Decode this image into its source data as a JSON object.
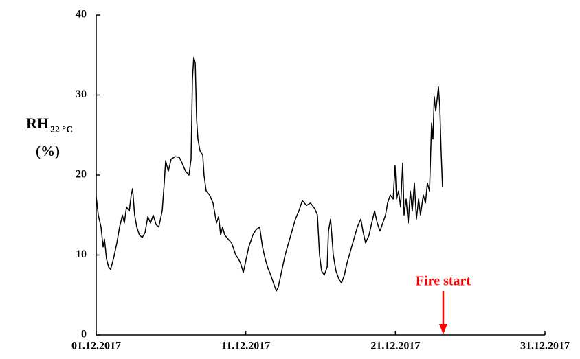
{
  "chart_data": {
    "type": "line",
    "ylabel": "RH",
    "ylabel_subscript": "22 °C",
    "ylabel_unit": "(%)",
    "annotation": {
      "text": "Fire start",
      "x": 23.2,
      "color": "#ff0000"
    },
    "color": "#000000",
    "xlim": [
      0,
      30
    ],
    "xticks": [
      {
        "value": 0,
        "label": "01.12.2017"
      },
      {
        "value": 10,
        "label": "11.12.2017"
      },
      {
        "value": 20,
        "label": "21.12.2017"
      },
      {
        "value": 30,
        "label": "31.12.2017"
      }
    ],
    "ylim": [
      0,
      40
    ],
    "yticks": [
      0,
      10,
      20,
      30,
      40
    ],
    "x": [
      0,
      0.14,
      0.32,
      0.46,
      0.55,
      0.69,
      0.83,
      0.96,
      1.15,
      1.38,
      1.56,
      1.75,
      1.88,
      2.02,
      2.21,
      2.34,
      2.43,
      2.57,
      2.71,
      2.89,
      3.08,
      3.26,
      3.45,
      3.63,
      3.81,
      4.0,
      4.18,
      4.41,
      4.55,
      4.64,
      4.82,
      5.01,
      5.28,
      5.56,
      5.74,
      5.97,
      6.2,
      6.34,
      6.43,
      6.52,
      6.62,
      6.71,
      6.8,
      6.94,
      7.12,
      7.21,
      7.35,
      7.58,
      7.81,
      8.04,
      8.18,
      8.32,
      8.45,
      8.59,
      8.82,
      9.05,
      9.33,
      9.51,
      9.65,
      9.83,
      9.97,
      10.2,
      10.47,
      10.7,
      10.93,
      11.12,
      11.3,
      11.49,
      11.67,
      11.85,
      12.04,
      12.17,
      12.4,
      12.63,
      12.86,
      13.09,
      13.32,
      13.55,
      13.78,
      14.06,
      14.33,
      14.61,
      14.79,
      14.93,
      15.07,
      15.25,
      15.44,
      15.53,
      15.67,
      15.85,
      16.03,
      16.22,
      16.4,
      16.59,
      16.77,
      17.0,
      17.23,
      17.46,
      17.69,
      17.83,
      18.01,
      18.24,
      18.42,
      18.61,
      18.79,
      18.97,
      19.16,
      19.34,
      19.48,
      19.66,
      19.85,
      19.98,
      20.08,
      20.21,
      20.35,
      20.49,
      20.58,
      20.72,
      20.86,
      21.0,
      21.13,
      21.27,
      21.41,
      21.55,
      21.68,
      21.87,
      22.01,
      22.14,
      22.28,
      22.42,
      22.51,
      22.6,
      22.7,
      22.79,
      22.88,
      22.97,
      23.06,
      23.15
    ],
    "values": [
      17.3,
      15,
      13.5,
      11,
      12,
      9.5,
      8.5,
      8.2,
      9.5,
      11.5,
      13.5,
      15,
      14,
      16,
      15.5,
      17.5,
      18.3,
      15,
      13.5,
      12.5,
      12.2,
      12.8,
      14.8,
      14,
      15,
      13.8,
      13.5,
      15.5,
      19,
      21.8,
      20.5,
      22,
      22.3,
      22.2,
      21.5,
      20.5,
      20,
      22,
      32,
      34.7,
      34,
      27,
      24.5,
      23,
      22.5,
      20,
      18,
      17.5,
      16.5,
      14,
      14.8,
      12.5,
      13.5,
      12.5,
      12,
      11.5,
      10,
      9.5,
      9,
      7.8,
      9,
      11,
      12.5,
      13.2,
      13.5,
      11,
      9.5,
      8.3,
      7.5,
      6.5,
      5.5,
      6,
      8,
      10,
      11.5,
      13,
      14.5,
      15.5,
      16.8,
      16.2,
      16.5,
      15.8,
      15,
      10,
      8,
      7.5,
      8.5,
      13,
      14.5,
      10,
      8,
      7,
      6.5,
      7.5,
      9,
      10.5,
      12,
      13.5,
      14.5,
      13,
      11.5,
      12.5,
      14,
      15.5,
      14,
      13,
      14,
      15,
      16.5,
      17.5,
      17,
      21.2,
      17,
      18,
      16,
      21.5,
      15,
      17,
      14,
      18,
      15.5,
      19,
      14.5,
      17,
      15,
      17.5,
      16.5,
      19,
      18,
      26.5,
      24.5,
      29.8,
      28,
      29.5,
      31,
      28.5,
      23,
      18.5
    ]
  }
}
